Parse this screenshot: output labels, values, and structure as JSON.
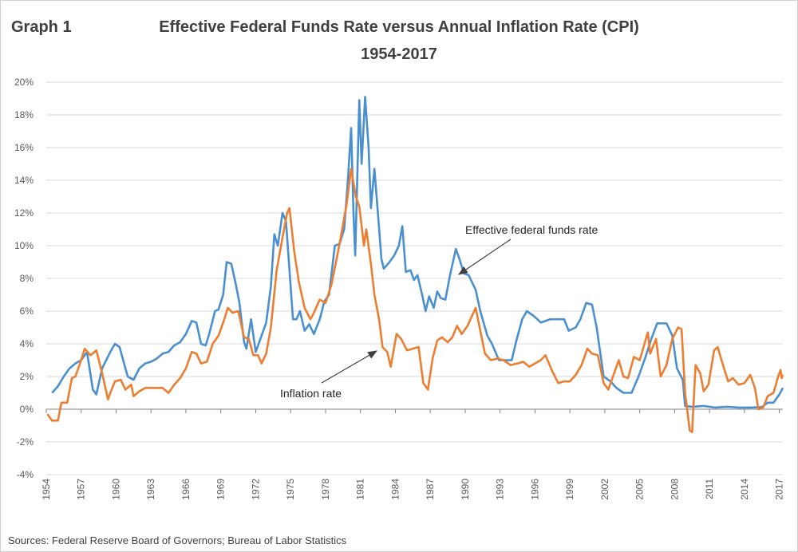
{
  "chart_data": {
    "type": "line",
    "label": "Graph 1",
    "title": "Effective Federal Funds Rate versus Annual Inflation Rate (CPI)",
    "subtitle": "1954-2017",
    "source": "Sources: Federal Reserve Board of Governors; Bureau of Labor Statistics",
    "xlim": [
      1954,
      2017.3
    ],
    "xticks": [
      1954,
      1957,
      1960,
      1963,
      1966,
      1969,
      1972,
      1975,
      1978,
      1981,
      1984,
      1987,
      1990,
      1993,
      1996,
      1999,
      2002,
      2005,
      2008,
      2011,
      2014,
      2017
    ],
    "ylim": [
      -4,
      20
    ],
    "yticks": [
      {
        "value": -4,
        "label": "-4%"
      },
      {
        "value": -2,
        "label": "-2%"
      },
      {
        "value": 0,
        "label": "0%"
      },
      {
        "value": 2,
        "label": "2%"
      },
      {
        "value": 4,
        "label": "4%"
      },
      {
        "value": 6,
        "label": "6%"
      },
      {
        "value": 8,
        "label": "8%"
      },
      {
        "value": 10,
        "label": "10%"
      },
      {
        "value": 12,
        "label": "12%"
      },
      {
        "value": 14,
        "label": "14%"
      },
      {
        "value": 16,
        "label": "16%"
      },
      {
        "value": 18,
        "label": "18%"
      },
      {
        "value": 20,
        "label": "20%"
      }
    ],
    "grid": true,
    "series": [
      {
        "name": "Effective federal funds rate",
        "color": "#4a90d0",
        "x": [
          1954.5,
          1955,
          1955.5,
          1956,
          1956.5,
          1957,
          1957.5,
          1958,
          1958.3,
          1958.8,
          1959.5,
          1959.9,
          1960.3,
          1960.8,
          1961,
          1961.5,
          1962,
          1962.5,
          1963,
          1963.5,
          1964,
          1964.5,
          1965,
          1965.5,
          1966,
          1966.5,
          1966.9,
          1967.3,
          1967.7,
          1968,
          1968.5,
          1968.8,
          1969.2,
          1969.5,
          1969.9,
          1970.3,
          1970.6,
          1971,
          1971.2,
          1971.6,
          1972,
          1972.5,
          1972.9,
          1973.3,
          1973.6,
          1973.9,
          1974.3,
          1974.6,
          1974.9,
          1975.2,
          1975.5,
          1975.8,
          1976.2,
          1976.6,
          1977,
          1977.5,
          1977.9,
          1978.3,
          1978.8,
          1979.2,
          1979.6,
          1979.9,
          1980.2,
          1980.4,
          1980.55,
          1980.9,
          1981.1,
          1981.4,
          1981.7,
          1981.9,
          1982.2,
          1982.5,
          1982.8,
          1983,
          1983.5,
          1983.9,
          1984.3,
          1984.6,
          1984.9,
          1985.3,
          1985.6,
          1985.9,
          1986.3,
          1986.6,
          1986.9,
          1987.3,
          1987.6,
          1987.9,
          1988.3,
          1988.7,
          1989.2,
          1989.5,
          1989.9,
          1990.3,
          1990.9,
          1991.3,
          1991.9,
          1992.3,
          1992.9,
          1993.5,
          1994,
          1994.4,
          1994.9,
          1995.3,
          1995.9,
          1996.5,
          1997.3,
          1997.9,
          1998.5,
          1998.9,
          1999.5,
          1999.9,
          2000.4,
          2000.9,
          2001.3,
          2001.9,
          2002.5,
          2003,
          2003.6,
          2004.3,
          2004.9,
          2005.5,
          2006,
          2006.5,
          2007.3,
          2007.8,
          2008.2,
          2008.7,
          2008.9,
          2009.5,
          2010.5,
          2011.5,
          2012.5,
          2013.5,
          2014.5,
          2015.5,
          2016,
          2016.5,
          2017,
          2017.3
        ],
        "values": [
          1.0,
          1.4,
          2.0,
          2.5,
          2.8,
          3.0,
          3.5,
          1.2,
          0.9,
          2.5,
          3.5,
          4.0,
          3.8,
          2.5,
          2.0,
          1.8,
          2.5,
          2.8,
          2.9,
          3.1,
          3.4,
          3.5,
          3.9,
          4.1,
          4.6,
          5.4,
          5.3,
          4.0,
          3.9,
          4.6,
          6.0,
          6.1,
          7.0,
          9.0,
          8.9,
          7.6,
          6.5,
          4.1,
          3.7,
          5.5,
          3.5,
          4.5,
          5.3,
          7.5,
          10.7,
          10.0,
          12.0,
          11.5,
          8.5,
          5.5,
          5.5,
          6.0,
          4.8,
          5.2,
          4.6,
          5.5,
          6.6,
          7.0,
          10.0,
          10.1,
          11.0,
          13.8,
          17.2,
          12.0,
          9.4,
          18.9,
          15.0,
          19.1,
          16.0,
          12.3,
          14.7,
          12.0,
          9.2,
          8.6,
          9.0,
          9.4,
          10.0,
          11.2,
          8.4,
          8.5,
          7.9,
          8.2,
          7.0,
          6.0,
          6.9,
          6.2,
          7.2,
          6.8,
          6.7,
          8.2,
          9.8,
          9.2,
          8.3,
          8.2,
          7.3,
          6.0,
          4.5,
          4.0,
          3.0,
          3.0,
          3.0,
          4.2,
          5.5,
          6.0,
          5.7,
          5.3,
          5.5,
          5.5,
          5.5,
          4.8,
          5.0,
          5.5,
          6.5,
          6.4,
          5.0,
          2.0,
          1.7,
          1.3,
          1.0,
          1.0,
          2.0,
          3.2,
          4.3,
          5.25,
          5.25,
          4.5,
          2.5,
          1.8,
          0.2,
          0.15,
          0.2,
          0.1,
          0.15,
          0.1,
          0.1,
          0.13,
          0.4,
          0.4,
          0.9,
          1.3
        ]
      },
      {
        "name": "Inflation rate",
        "color": "#ed7d31",
        "x": [
          1954.1,
          1954.5,
          1955,
          1955.3,
          1955.8,
          1956.2,
          1956.5,
          1957,
          1957.3,
          1957.8,
          1958.3,
          1958.8,
          1959.3,
          1959.5,
          1959.9,
          1960.4,
          1960.8,
          1961.3,
          1961.5,
          1962,
          1962.5,
          1963,
          1963.5,
          1964,
          1964.5,
          1965,
          1965.5,
          1966,
          1966.5,
          1966.9,
          1967.3,
          1967.8,
          1968.3,
          1968.8,
          1969.3,
          1969.6,
          1970,
          1970.5,
          1971,
          1971.4,
          1971.8,
          1972.2,
          1972.5,
          1972.9,
          1973.3,
          1973.8,
          1974.3,
          1974.7,
          1974.9,
          1975.3,
          1975.7,
          1976.2,
          1976.7,
          1977,
          1977.5,
          1978,
          1978.5,
          1978.9,
          1979.3,
          1979.8,
          1980.2,
          1980.6,
          1980.9,
          1981.3,
          1981.5,
          1981.9,
          1982.2,
          1982.6,
          1982.9,
          1983.3,
          1983.6,
          1984.1,
          1984.5,
          1985,
          1985.5,
          1986,
          1986.4,
          1986.8,
          1987.2,
          1987.6,
          1988,
          1988.5,
          1988.9,
          1989.3,
          1989.7,
          1990.2,
          1990.9,
          1991.3,
          1991.7,
          1992.2,
          1992.8,
          1993.3,
          1993.9,
          1994.5,
          1995,
          1995.5,
          1996,
          1996.5,
          1996.9,
          1997.5,
          1998,
          1998.5,
          1999,
          1999.5,
          2000,
          2000.5,
          2000.9,
          2001.4,
          2001.9,
          2002.3,
          2002.8,
          2003.2,
          2003.6,
          2004,
          2004.5,
          2005,
          2005.7,
          2005.9,
          2006.4,
          2006.8,
          2007.3,
          2007.8,
          2008.3,
          2008.6,
          2008.9,
          2009.3,
          2009.5,
          2009.8,
          2010.2,
          2010.5,
          2010.9,
          2011.4,
          2011.7,
          2012.2,
          2012.6,
          2013,
          2013.5,
          2014,
          2014.5,
          2014.9,
          2015.2,
          2015.6,
          2016,
          2016.5,
          2016.9,
          2017.1,
          2017.2,
          2017.3
        ],
        "values": [
          -0.3,
          -0.7,
          -0.7,
          0.4,
          0.4,
          1.9,
          2.0,
          3.0,
          3.7,
          3.3,
          3.6,
          2.2,
          0.6,
          1.0,
          1.7,
          1.8,
          1.2,
          1.5,
          0.8,
          1.1,
          1.3,
          1.3,
          1.3,
          1.3,
          1.0,
          1.5,
          1.9,
          2.5,
          3.5,
          3.4,
          2.8,
          2.9,
          4.0,
          4.5,
          5.5,
          6.2,
          5.9,
          6.0,
          4.4,
          4.3,
          3.3,
          3.3,
          2.8,
          3.4,
          5.0,
          8.5,
          10.5,
          12.0,
          12.3,
          9.7,
          7.8,
          6.2,
          5.5,
          5.9,
          6.7,
          6.5,
          7.6,
          9.0,
          10.5,
          12.5,
          14.7,
          13.0,
          12.4,
          10.0,
          11.0,
          8.9,
          7.0,
          5.5,
          3.8,
          3.5,
          2.6,
          4.6,
          4.3,
          3.6,
          3.7,
          3.8,
          1.6,
          1.2,
          3.1,
          4.2,
          4.4,
          4.1,
          4.4,
          5.1,
          4.6,
          5.1,
          6.2,
          4.8,
          3.4,
          3.0,
          3.1,
          3.0,
          2.7,
          2.8,
          2.9,
          2.6,
          2.8,
          3.0,
          3.3,
          2.3,
          1.6,
          1.7,
          1.7,
          2.1,
          2.7,
          3.7,
          3.4,
          3.3,
          1.6,
          1.2,
          2.2,
          3.0,
          2.0,
          1.9,
          3.2,
          3.0,
          4.7,
          3.4,
          4.3,
          2.0,
          2.7,
          4.3,
          5.0,
          4.9,
          1.0,
          -1.3,
          -1.4,
          2.7,
          2.2,
          1.1,
          1.5,
          3.6,
          3.8,
          2.6,
          1.7,
          1.9,
          1.5,
          1.6,
          2.1,
          1.3,
          0.0,
          0.1,
          0.8,
          1.0,
          2.0,
          2.4,
          1.9,
          2.1
        ]
      }
    ]
  }
}
